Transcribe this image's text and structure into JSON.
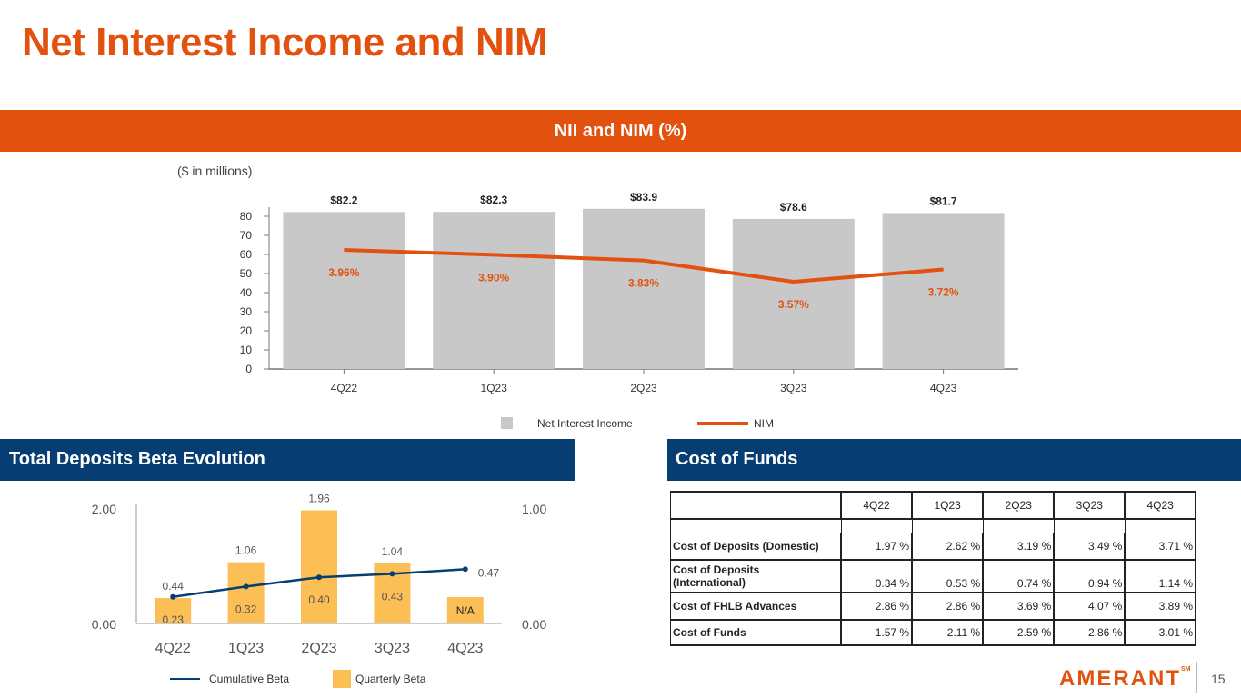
{
  "title": "Net Interest Income and NIM",
  "sections": {
    "nii": "NII and NIM (%)",
    "beta": "Total Deposits Beta Evolution",
    "cof": "Cost of Funds"
  },
  "units_note": "($ in millions)",
  "colors": {
    "orange": "#e2520e",
    "navy": "#063d73",
    "gray_bar": "#c8c8c8",
    "gold_bar": "#fbbf55"
  },
  "chart_data": [
    {
      "type": "bar",
      "categories": [
        "4Q22",
        "1Q23",
        "2Q23",
        "3Q23",
        "4Q23"
      ],
      "series": [
        {
          "name": "Net Interest Income",
          "type": "bar",
          "values": [
            82.2,
            82.3,
            83.9,
            78.6,
            81.7
          ],
          "labels": [
            "$82.2",
            "$82.3",
            "$83.9",
            "$78.6",
            "$81.7"
          ]
        },
        {
          "name": "NIM",
          "type": "line",
          "values": [
            3.96,
            3.9,
            3.83,
            3.57,
            3.72
          ],
          "labels": [
            "3.96%",
            "3.90%",
            "3.83%",
            "3.57%",
            "3.72%"
          ]
        }
      ],
      "yticks": [
        "0",
        "10",
        "20",
        "30",
        "40",
        "50",
        "60",
        "70",
        "80"
      ],
      "ylim": [
        0,
        80
      ],
      "legend": [
        "Net Interest Income",
        "NIM"
      ],
      "legend_position": "bottom-center"
    },
    {
      "type": "bar",
      "categories": [
        "4Q22",
        "1Q23",
        "2Q23",
        "3Q23",
        "4Q23"
      ],
      "series": [
        {
          "name": "Quarterly Beta",
          "type": "bar",
          "axis": "left",
          "values": [
            0.44,
            1.06,
            1.96,
            1.04,
            null
          ],
          "labels": [
            "0.44",
            "1.06",
            "1.96",
            "1.04",
            "N/A"
          ]
        },
        {
          "name": "Cumulative Beta",
          "type": "line",
          "axis": "right",
          "values": [
            0.23,
            0.32,
            0.4,
            0.43,
            0.47
          ],
          "labels": [
            "0.23",
            "0.32",
            "0.40",
            "0.43",
            "0.47"
          ]
        }
      ],
      "left_axis": {
        "ticks": [
          "0.00",
          "2.00"
        ],
        "range": [
          0,
          2
        ]
      },
      "right_axis": {
        "ticks": [
          "0.00",
          "1.00"
        ],
        "range": [
          0,
          1
        ]
      },
      "legend": [
        "Cumulative Beta",
        "Quarterly Beta"
      ],
      "legend_position": "bottom-left"
    }
  ],
  "cost_of_funds": {
    "columns": [
      "4Q22",
      "1Q23",
      "2Q23",
      "3Q23",
      "4Q23"
    ],
    "rows": [
      {
        "label": "Cost of Deposits (Domestic)",
        "values": [
          "1.97 %",
          "2.62 %",
          "3.19 %",
          "3.49 %",
          "3.71 %"
        ]
      },
      {
        "label": "Cost of Deposits (International)",
        "values": [
          "0.34 %",
          "0.53 %",
          "0.74 %",
          "0.94 %",
          "1.14 %"
        ]
      },
      {
        "label": "Cost of FHLB Advances",
        "values": [
          "2.86 %",
          "2.86 %",
          "3.69 %",
          "4.07 %",
          "3.89 %"
        ]
      },
      {
        "label": "Cost of Funds",
        "values": [
          "1.57 %",
          "2.11 %",
          "2.59 %",
          "2.86 %",
          "3.01 %"
        ]
      }
    ]
  },
  "footer": {
    "logo_text": "AMERANT",
    "trademark": "SM",
    "page_number": "15"
  }
}
